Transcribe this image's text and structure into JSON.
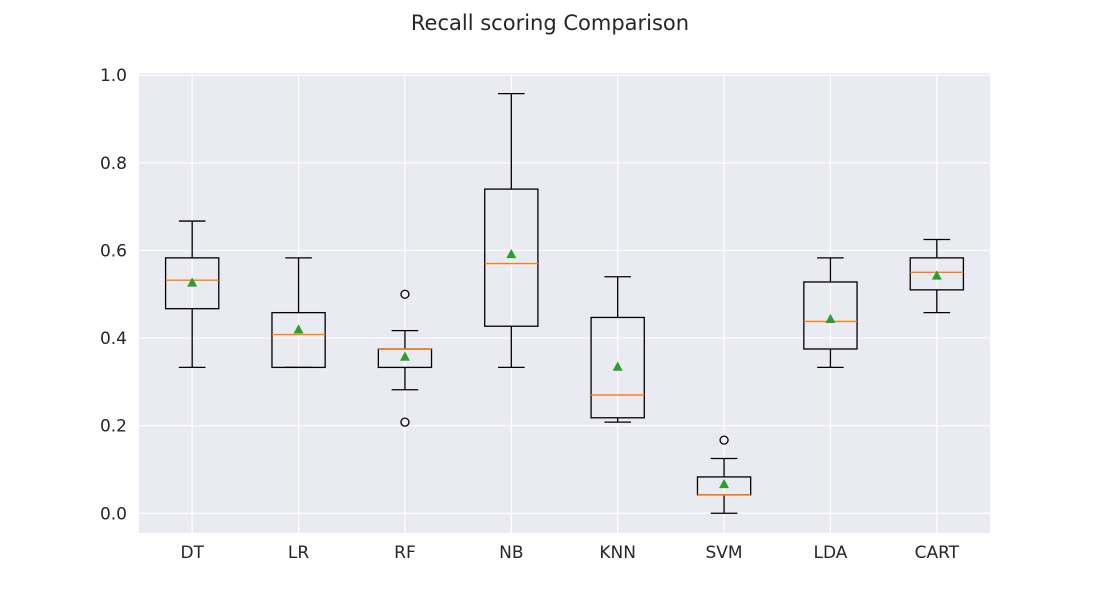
{
  "chart_data": {
    "type": "box",
    "title": "Recall scoring Comparison",
    "xlabel": "",
    "ylabel": "",
    "ylim": [
      -0.045,
      1.005
    ],
    "yticks": [
      0.0,
      0.2,
      0.4,
      0.6,
      0.8,
      1.0
    ],
    "ytick_labels": [
      "0.0",
      "0.2",
      "0.4",
      "0.6",
      "0.8",
      "1.0"
    ],
    "grid": true,
    "background_color": "#eaeaf2",
    "grid_color": "#ffffff",
    "box_color": "#000000",
    "median_color": "#ff7f0e",
    "mean_marker_color": "#2ca02c",
    "categories": [
      "DT",
      "LR",
      "RF",
      "NB",
      "KNN",
      "SVM",
      "LDA",
      "CART"
    ],
    "boxes": [
      {
        "label": "DT",
        "whisker_low": 0.333,
        "q1": 0.467,
        "median": 0.532,
        "q3": 0.583,
        "whisker_high": 0.667,
        "mean": 0.527,
        "outliers": []
      },
      {
        "label": "LR",
        "whisker_low": 0.333,
        "q1": 0.333,
        "median": 0.408,
        "q3": 0.458,
        "whisker_high": 0.583,
        "mean": 0.42,
        "outliers": []
      },
      {
        "label": "RF",
        "whisker_low": 0.282,
        "q1": 0.333,
        "median": 0.375,
        "q3": 0.375,
        "whisker_high": 0.417,
        "mean": 0.358,
        "outliers": [
          0.5,
          0.208
        ]
      },
      {
        "label": "NB",
        "whisker_low": 0.333,
        "q1": 0.427,
        "median": 0.57,
        "q3": 0.74,
        "whisker_high": 0.958,
        "mean": 0.592,
        "outliers": []
      },
      {
        "label": "KNN",
        "whisker_low": 0.208,
        "q1": 0.218,
        "median": 0.27,
        "q3": 0.447,
        "whisker_high": 0.54,
        "mean": 0.335,
        "outliers": []
      },
      {
        "label": "SVM",
        "whisker_low": 0.0,
        "q1": 0.042,
        "median": 0.042,
        "q3": 0.083,
        "whisker_high": 0.125,
        "mean": 0.067,
        "outliers": [
          0.167
        ]
      },
      {
        "label": "LDA",
        "whisker_low": 0.333,
        "q1": 0.375,
        "median": 0.438,
        "q3": 0.528,
        "whisker_high": 0.583,
        "mean": 0.444,
        "outliers": []
      },
      {
        "label": "CART",
        "whisker_low": 0.458,
        "q1": 0.51,
        "median": 0.55,
        "q3": 0.583,
        "whisker_high": 0.625,
        "mean": 0.543,
        "outliers": []
      }
    ]
  }
}
